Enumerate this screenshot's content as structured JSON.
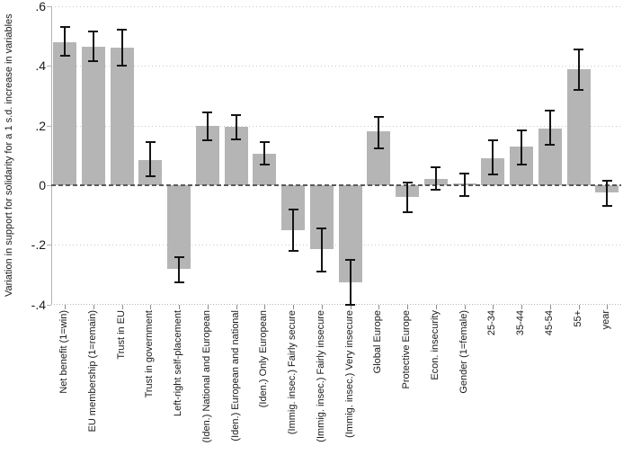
{
  "figure": {
    "background": "#ffffff"
  },
  "colors": {
    "bar": "#b5b5b5",
    "error_bar": "#141414",
    "zero_line": "#5a5a5a",
    "gridline": "#c8c8c8",
    "axis": "#b2b2b2",
    "text": "#1a1a1a"
  },
  "chart_data": {
    "type": "bar",
    "title": "",
    "xlabel": "",
    "ylabel": "Variation in support for solidarity for a 1 s.d. increase in variables",
    "ylim": [
      -0.4,
      0.6
    ],
    "grid": "horizontal dotted lines at y ticks",
    "zero_line": "dashed horizontal line at 0",
    "error_bars": "95% confidence intervals, black with caps",
    "legend": null,
    "yticks": [
      {
        "value": 0.6,
        "label": ".6"
      },
      {
        "value": 0.4,
        "label": ".4"
      },
      {
        "value": 0.2,
        "label": ".2"
      },
      {
        "value": 0,
        "label": "0"
      },
      {
        "value": -0.2,
        "label": "-.2"
      },
      {
        "value": -0.4,
        "label": "-.4"
      }
    ],
    "categories": [
      "Net benefit (1=win)",
      "EU membership (1=remain)",
      "Trust in EU",
      "Trust in government",
      "Left-right self-placement",
      "(Iden.) National and European",
      "(Iden.) European and national",
      "(Iden.) Only European",
      "(Immig. insec.) Fairly secure",
      "(Immig. insec.) Fairly insecure",
      "(Immig. insec.) Very insecure",
      "Global Europe",
      "Protective Europe",
      "Econ. insecurity",
      "Gender (1=female)",
      "25-34",
      "35-44",
      "45-54",
      "55+",
      "year"
    ],
    "values": [
      0.48,
      0.465,
      0.46,
      0.085,
      -0.28,
      0.2,
      0.195,
      0.105,
      -0.15,
      -0.215,
      -0.325,
      0.18,
      -0.04,
      0.02,
      0.005,
      0.09,
      0.13,
      0.19,
      0.39,
      -0.025
    ],
    "ci_high": [
      0.53,
      0.515,
      0.52,
      0.145,
      -0.24,
      0.245,
      0.235,
      0.145,
      -0.08,
      -0.145,
      -0.25,
      0.23,
      0.01,
      0.06,
      0.04,
      0.15,
      0.185,
      0.25,
      0.455,
      0.015
    ],
    "ci_low": [
      0.435,
      0.415,
      0.4,
      0.03,
      -0.325,
      0.15,
      0.155,
      0.07,
      -0.22,
      -0.29,
      -0.4,
      0.125,
      -0.09,
      -0.015,
      -0.035,
      0.035,
      0.07,
      0.135,
      0.32,
      -0.07
    ]
  }
}
